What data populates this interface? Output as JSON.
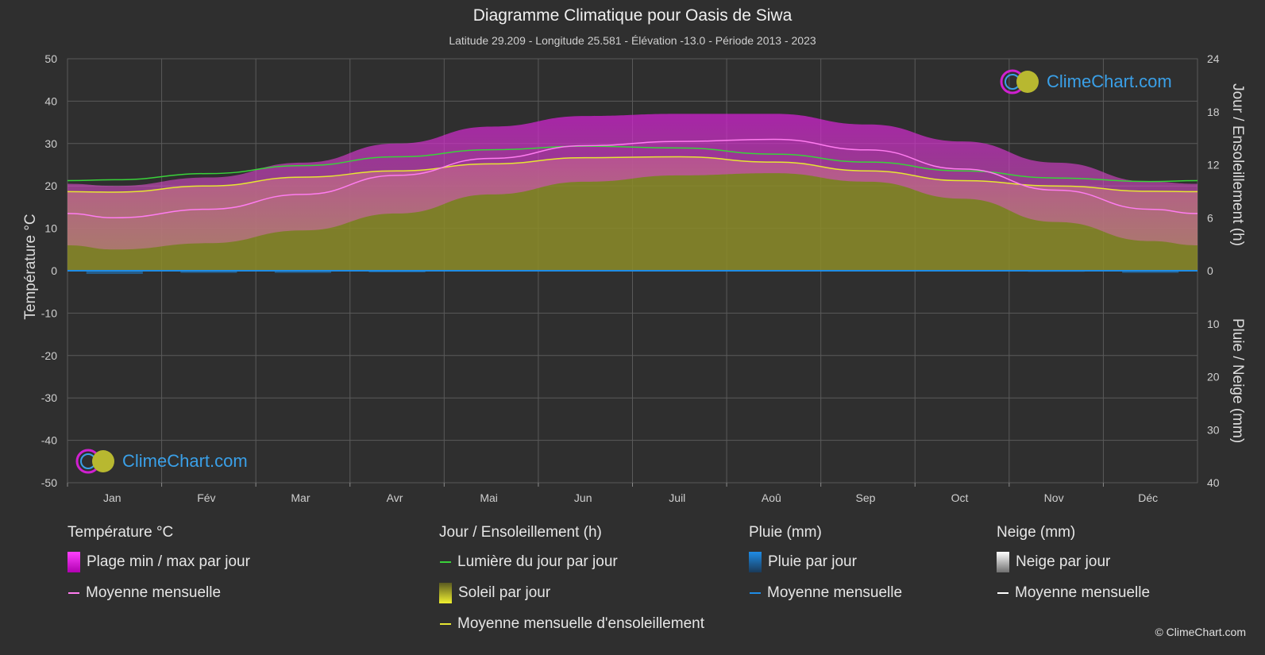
{
  "title": "Diagramme Climatique pour Oasis de Siwa",
  "subtitle": "Latitude 29.209 - Longitude 25.581 - Élévation -13.0 - Période 2013 - 2023",
  "logo_text": "ClimeChart.com",
  "copyright": "© ClimeChart.com",
  "colors": {
    "background": "#2f2f2f",
    "temp_range": "#d020d0",
    "temp_mean": "#ff7cf0",
    "daylight": "#3ad23a",
    "sunshine_fill": "#8c8c28",
    "sunshine_mean": "#e6e632",
    "rain": "#1e8ce6",
    "snow": "#ffffff"
  },
  "chart_data": {
    "type": "line",
    "categories": [
      "Jan",
      "Fév",
      "Mar",
      "Avr",
      "Mai",
      "Jun",
      "Juil",
      "Aoû",
      "Sep",
      "Oct",
      "Nov",
      "Déc"
    ],
    "left_axis": {
      "label": "Température °C",
      "min": -50,
      "max": 50,
      "ticks": [
        50,
        40,
        30,
        20,
        10,
        0,
        -10,
        -20,
        -30,
        -40,
        -50
      ]
    },
    "right_axis_top": {
      "label": "Jour / Ensoleillement (h)",
      "min": 0,
      "max": 24,
      "ticks": [
        24,
        18,
        12,
        6,
        0
      ]
    },
    "right_axis_bottom": {
      "label": "Pluie / Neige (mm)",
      "min": 0,
      "max": 40,
      "ticks": [
        0,
        10,
        20,
        30,
        40
      ]
    },
    "series": [
      {
        "name": "Lumière du jour par jour",
        "unit": "h",
        "values": [
          10.3,
          11.0,
          11.9,
          12.9,
          13.7,
          14.1,
          13.9,
          13.2,
          12.3,
          11.3,
          10.5,
          10.1
        ]
      },
      {
        "name": "Moyenne mensuelle d'ensoleillement",
        "unit": "h",
        "values": [
          8.9,
          9.6,
          10.6,
          11.3,
          12.1,
          12.8,
          12.9,
          12.3,
          11.3,
          10.2,
          9.6,
          9.0
        ]
      },
      {
        "name": "Moyenne mensuelle",
        "unit": "°C",
        "values": [
          12.5,
          14.5,
          18.0,
          22.5,
          26.5,
          29.5,
          30.5,
          31.0,
          28.5,
          24.0,
          19.0,
          14.5
        ]
      },
      {
        "name": "Plage min / max par jour — max",
        "unit": "°C",
        "values": [
          20.0,
          22.0,
          25.5,
          30.0,
          34.0,
          36.5,
          37.0,
          37.0,
          34.5,
          30.5,
          25.5,
          21.0
        ]
      },
      {
        "name": "Plage min / max par jour — min",
        "unit": "°C",
        "values": [
          5.0,
          6.5,
          9.5,
          13.5,
          18.0,
          21.0,
          22.5,
          23.0,
          21.0,
          17.0,
          11.5,
          7.0
        ]
      },
      {
        "name": "Pluie par jour",
        "unit": "mm",
        "values": [
          0.6,
          0.4,
          0.4,
          0.3,
          0.1,
          0.0,
          0.0,
          0.0,
          0.0,
          0.1,
          0.2,
          0.4
        ]
      }
    ]
  },
  "legend": {
    "temperature": {
      "title": "Température °C",
      "range": "Plage min / max par jour",
      "mean": "Moyenne mensuelle"
    },
    "sun": {
      "title": "Jour / Ensoleillement (h)",
      "daylight": "Lumière du jour par jour",
      "sunshine": "Soleil par jour",
      "sunshine_mean": "Moyenne mensuelle d'ensoleillement"
    },
    "rain": {
      "title": "Pluie (mm)",
      "daily": "Pluie par jour",
      "mean": "Moyenne mensuelle"
    },
    "snow": {
      "title": "Neige (mm)",
      "daily": "Neige par jour",
      "mean": "Moyenne mensuelle"
    }
  }
}
